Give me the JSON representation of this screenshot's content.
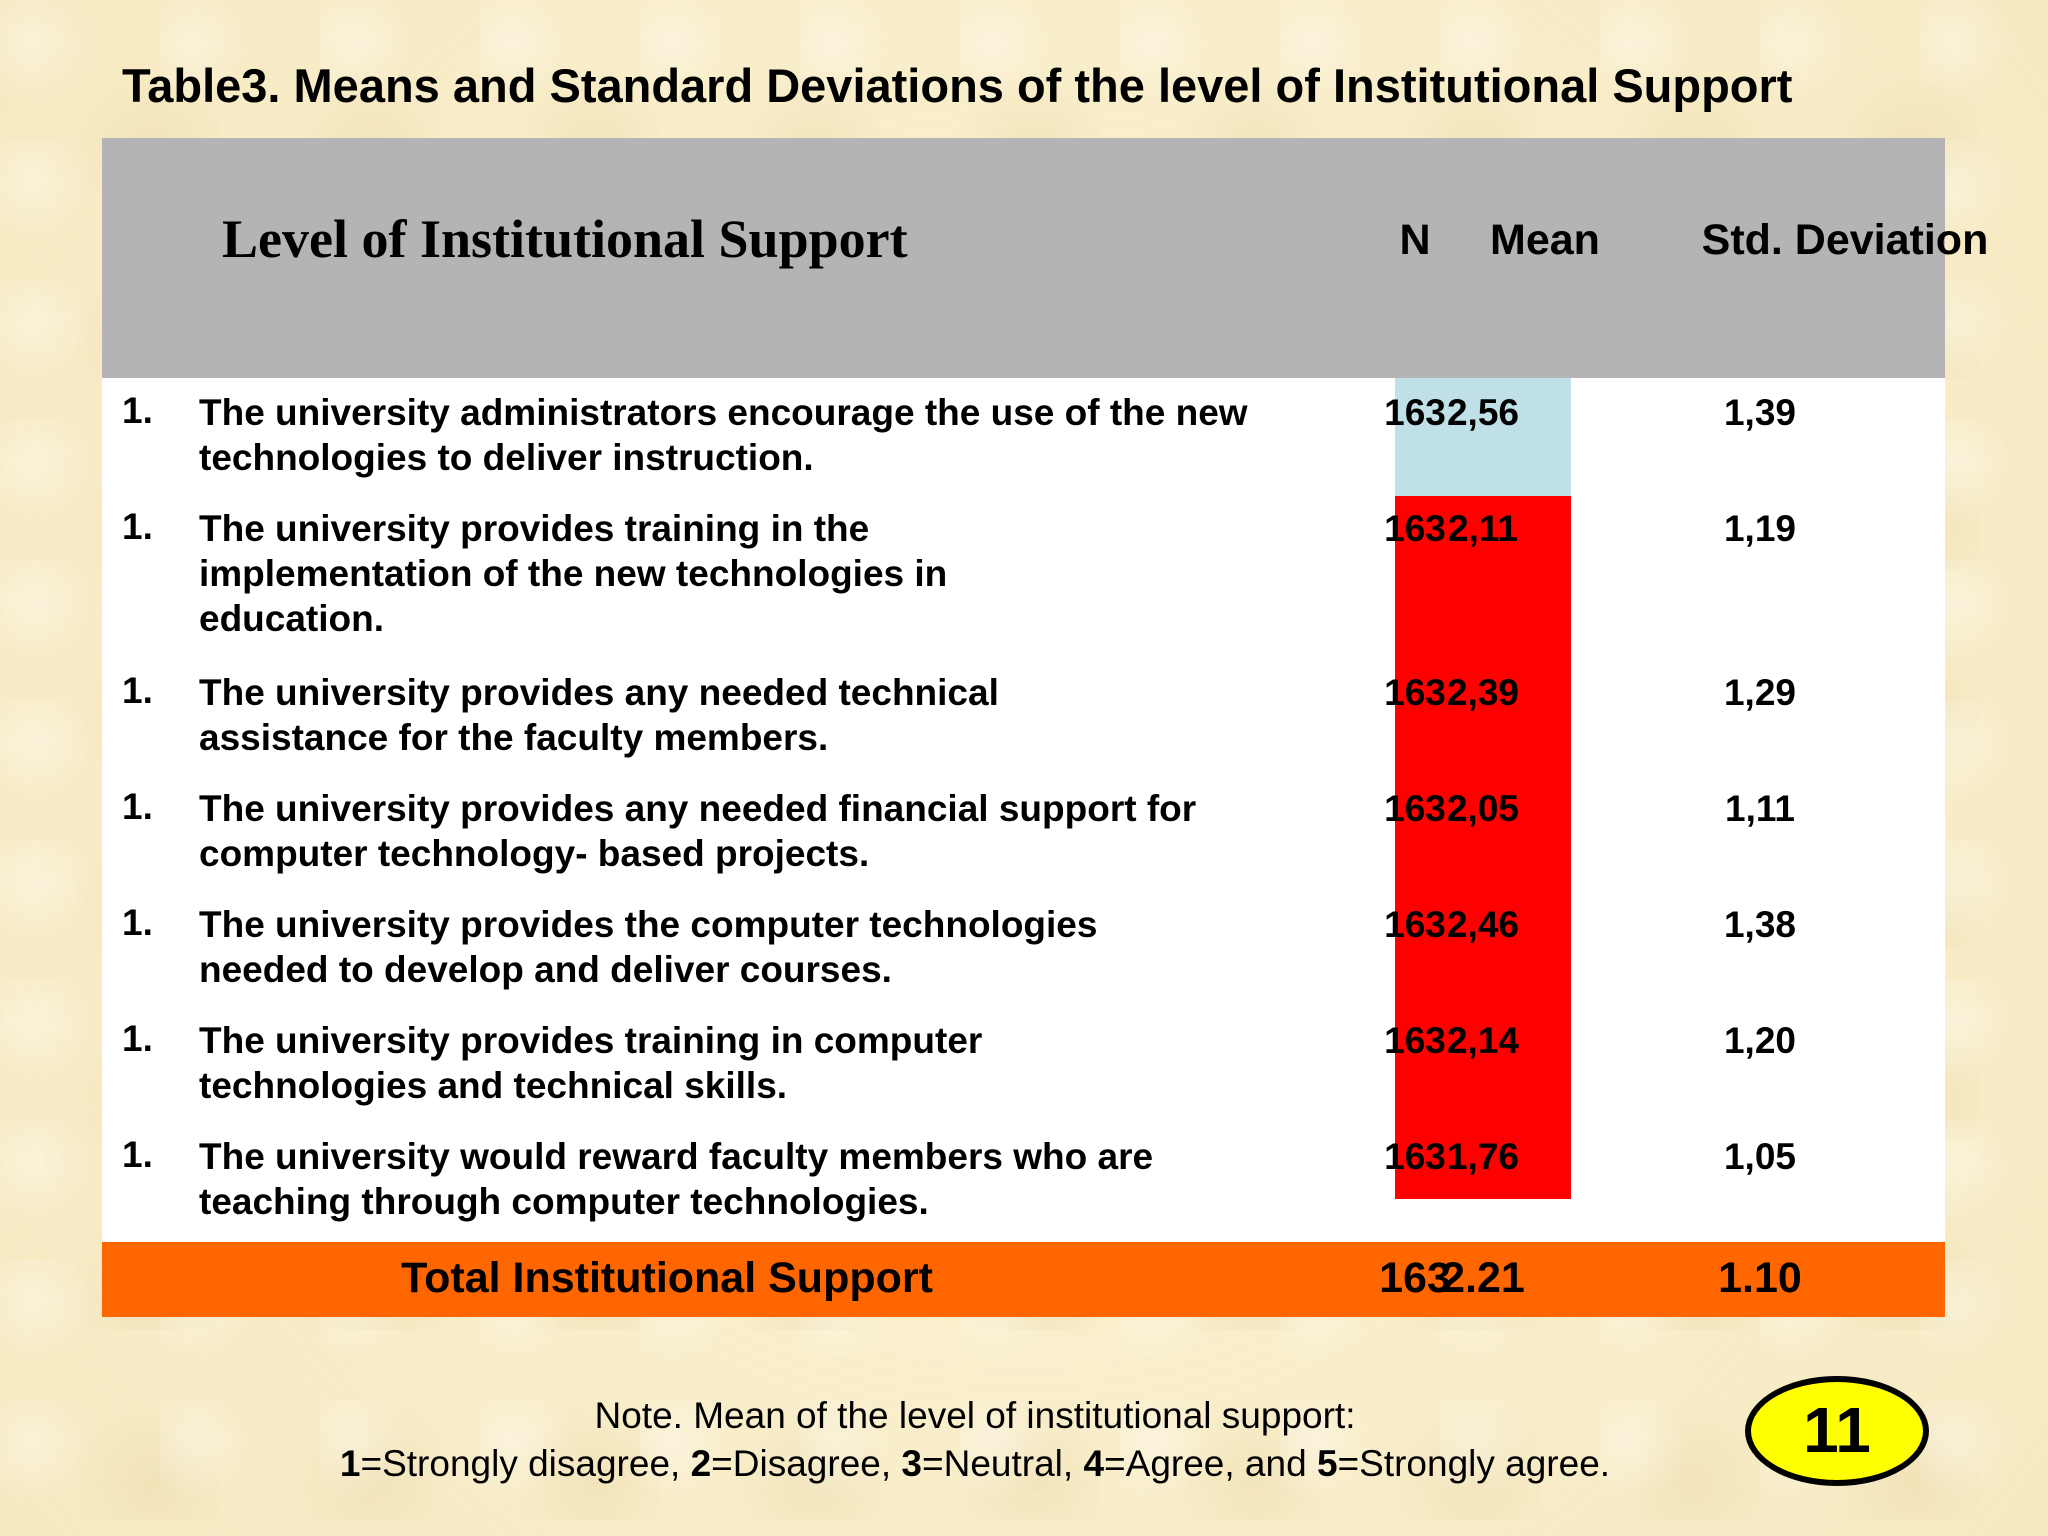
{
  "title": "Table3.  Means and Standard Deviations of the level of Institutional Support",
  "table": {
    "headers": {
      "statement": "Level of Institutional Support",
      "n": "N",
      "mean": "Mean",
      "sd": "Std. Deviation"
    },
    "rows": [
      {
        "num": "1.",
        "statement": "The university administrators encourage the use of the new technologies to deliver instruction.",
        "n": "163",
        "mean": "2,56",
        "sd": "1,39"
      },
      {
        "num": "1.",
        "statement": "The university provides training in the implementation of the new technologies in education.",
        "n": "163",
        "mean": "2,11",
        "sd": "1,19"
      },
      {
        "num": "1.",
        "statement": "The university provides any needed technical assistance for the faculty members.",
        "n": "163",
        "mean": "2,39",
        "sd": "1,29"
      },
      {
        "num": "1.",
        "statement": "The university provides any needed financial support for computer technology- based projects.",
        "n": "163",
        "mean": "2,05",
        "sd": "1,11"
      },
      {
        "num": "1.",
        "statement": "The university provides the computer technologies needed to develop and deliver courses.",
        "n": "163",
        "mean": "2,46",
        "sd": "1,38"
      },
      {
        "num": "1.",
        "statement": "The university provides training in computer technologies and technical skills.",
        "n": "163",
        "mean": "2,14",
        "sd": "1,20"
      },
      {
        "num": "1.",
        "statement": "The university would reward faculty members who are teaching through computer technologies.",
        "n": "163",
        "mean": "1,76",
        "sd": "1,05"
      }
    ],
    "total": {
      "label": "Total Institutional Support",
      "n": "163",
      "mean": "2.21",
      "sd": "1.10"
    }
  },
  "note": {
    "line1": "Note. Mean of the level of institutional support:",
    "scale": [
      {
        "num": "1",
        "label": "=Strongly disagree, "
      },
      {
        "num": "2",
        "label": "=Disagree, "
      },
      {
        "num": "3",
        "label": "=Neutral, "
      },
      {
        "num": "4",
        "label": "=Agree, and "
      },
      {
        "num": "5",
        "label": "=Strongly agree."
      }
    ]
  },
  "page_number": "11",
  "colors": {
    "header_bg": "#b4b4b6",
    "mean_highlight_first": "#bfe0e6",
    "mean_highlight_rest": "#ff0000",
    "total_bg": "#ff6600",
    "badge_bg": "#ffff00"
  }
}
